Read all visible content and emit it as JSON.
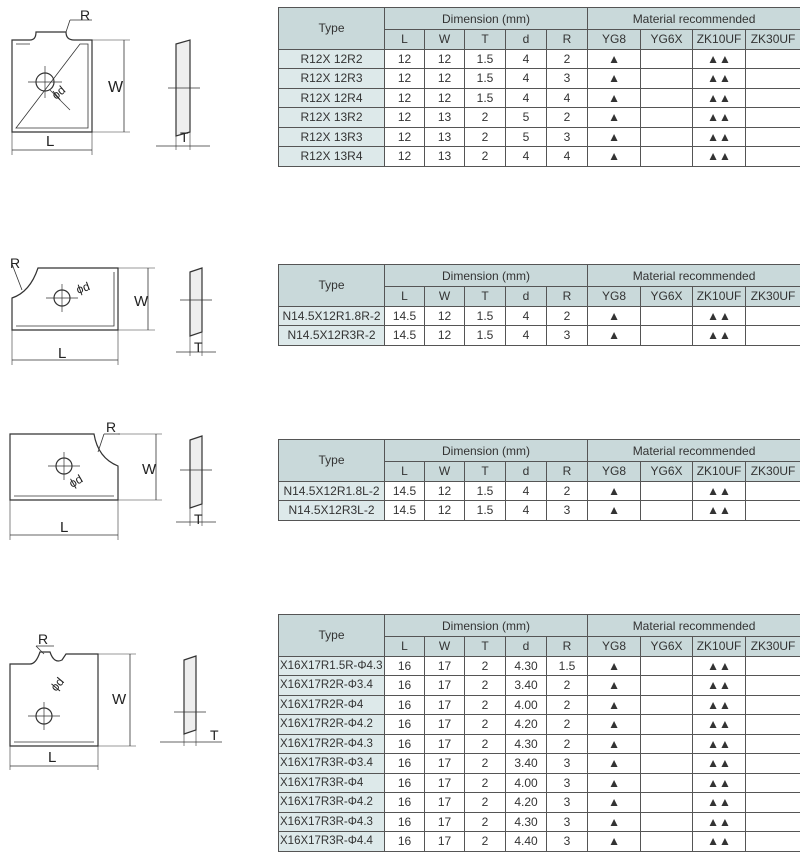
{
  "headers": {
    "type": "Type",
    "dimension": "Dimension  (mm)",
    "material": "Material recommended",
    "dims": [
      "L",
      "W",
      "T",
      "d",
      "R"
    ],
    "materials": [
      "YG8",
      "YG6X",
      "ZK10UF",
      "ZK30UF"
    ]
  },
  "labels": {
    "R": "R",
    "W": "W",
    "L": "L",
    "T": "T",
    "d": "ϕd"
  },
  "marks": {
    "single": "▲",
    "double": "▲▲"
  },
  "sections": [
    {
      "rows": [
        {
          "type": "R12X 12R2",
          "L": "12",
          "W": "12",
          "T": "1.5",
          "d": "4",
          "R": "2",
          "YG8": "▲",
          "YG6X": "",
          "ZK10UF": "▲▲",
          "ZK30UF": ""
        },
        {
          "type": "R12X 12R3",
          "L": "12",
          "W": "12",
          "T": "1.5",
          "d": "4",
          "R": "3",
          "YG8": "▲",
          "YG6X": "",
          "ZK10UF": "▲▲",
          "ZK30UF": ""
        },
        {
          "type": "R12X 12R4",
          "L": "12",
          "W": "12",
          "T": "1.5",
          "d": "4",
          "R": "4",
          "YG8": "▲",
          "YG6X": "",
          "ZK10UF": "▲▲",
          "ZK30UF": ""
        },
        {
          "type": "R12X 13R2",
          "L": "12",
          "W": "13",
          "T": "2",
          "d": "5",
          "R": "2",
          "YG8": "▲",
          "YG6X": "",
          "ZK10UF": "▲▲",
          "ZK30UF": ""
        },
        {
          "type": "R12X 13R3",
          "L": "12",
          "W": "13",
          "T": "2",
          "d": "5",
          "R": "3",
          "YG8": "▲",
          "YG6X": "",
          "ZK10UF": "▲▲",
          "ZK30UF": ""
        },
        {
          "type": "R12X 13R4",
          "L": "12",
          "W": "13",
          "T": "2",
          "d": "4",
          "R": "4",
          "YG8": "▲",
          "YG6X": "",
          "ZK10UF": "▲▲",
          "ZK30UF": ""
        }
      ]
    },
    {
      "rows": [
        {
          "type": "N14.5X12R1.8R-2",
          "L": "14.5",
          "W": "12",
          "T": "1.5",
          "d": "4",
          "R": "2",
          "YG8": "▲",
          "YG6X": "",
          "ZK10UF": "▲▲",
          "ZK30UF": ""
        },
        {
          "type": "N14.5X12R3R-2",
          "L": "14.5",
          "W": "12",
          "T": "1.5",
          "d": "4",
          "R": "3",
          "YG8": "▲",
          "YG6X": "",
          "ZK10UF": "▲▲",
          "ZK30UF": ""
        }
      ]
    },
    {
      "rows": [
        {
          "type": "N14.5X12R1.8L-2",
          "L": "14.5",
          "W": "12",
          "T": "1.5",
          "d": "4",
          "R": "2",
          "YG8": "▲",
          "YG6X": "",
          "ZK10UF": "▲▲",
          "ZK30UF": ""
        },
        {
          "type": "N14.5X12R3L-2",
          "L": "14.5",
          "W": "12",
          "T": "1.5",
          "d": "4",
          "R": "3",
          "YG8": "▲",
          "YG6X": "",
          "ZK10UF": "▲▲",
          "ZK30UF": ""
        }
      ]
    },
    {
      "rows": [
        {
          "type": "X16X17R1.5R-Φ4.3",
          "L": "16",
          "W": "17",
          "T": "2",
          "d": "4.30",
          "R": "1.5",
          "YG8": "▲",
          "YG6X": "",
          "ZK10UF": "▲▲",
          "ZK30UF": ""
        },
        {
          "type": "X16X17R2R-Φ3.4",
          "L": "16",
          "W": "17",
          "T": "2",
          "d": "3.40",
          "R": "2",
          "YG8": "▲",
          "YG6X": "",
          "ZK10UF": "▲▲",
          "ZK30UF": ""
        },
        {
          "type": "X16X17R2R-Φ4",
          "L": "16",
          "W": "17",
          "T": "2",
          "d": "4.00",
          "R": "2",
          "YG8": "▲",
          "YG6X": "",
          "ZK10UF": "▲▲",
          "ZK30UF": ""
        },
        {
          "type": "X16X17R2R-Φ4.2",
          "L": "16",
          "W": "17",
          "T": "2",
          "d": "4.20",
          "R": "2",
          "YG8": "▲",
          "YG6X": "",
          "ZK10UF": "▲▲",
          "ZK30UF": ""
        },
        {
          "type": "X16X17R2R-Φ4.3",
          "L": "16",
          "W": "17",
          "T": "2",
          "d": "4.30",
          "R": "2",
          "YG8": "▲",
          "YG6X": "",
          "ZK10UF": "▲▲",
          "ZK30UF": ""
        },
        {
          "type": "X16X17R3R-Φ3.4",
          "L": "16",
          "W": "17",
          "T": "2",
          "d": "3.40",
          "R": "3",
          "YG8": "▲",
          "YG6X": "",
          "ZK10UF": "▲▲",
          "ZK30UF": ""
        },
        {
          "type": "X16X17R3R-Φ4",
          "L": "16",
          "W": "17",
          "T": "2",
          "d": "4.00",
          "R": "3",
          "YG8": "▲",
          "YG6X": "",
          "ZK10UF": "▲▲",
          "ZK30UF": ""
        },
        {
          "type": "X16X17R3R-Φ4.2",
          "L": "16",
          "W": "17",
          "T": "2",
          "d": "4.20",
          "R": "3",
          "YG8": "▲",
          "YG6X": "",
          "ZK10UF": "▲▲",
          "ZK30UF": ""
        },
        {
          "type": "X16X17R3R-Φ4.3",
          "L": "16",
          "W": "17",
          "T": "2",
          "d": "4.30",
          "R": "3",
          "YG8": "▲",
          "YG6X": "",
          "ZK10UF": "▲▲",
          "ZK30UF": ""
        },
        {
          "type": "X16X17R3R-Φ4.4",
          "L": "16",
          "W": "17",
          "T": "2",
          "d": "4.40",
          "R": "3",
          "YG8": "▲",
          "YG6X": "",
          "ZK10UF": "▲▲",
          "ZK30UF": ""
        }
      ]
    }
  ]
}
